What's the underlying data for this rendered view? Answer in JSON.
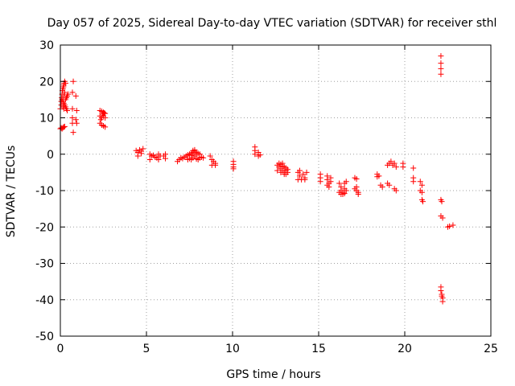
{
  "chart_data": {
    "type": "scatter",
    "title": "Day 057 of 2025, Sidereal Day-to-day VTEC variation (SDTVAR) for receiver sthl",
    "xlabel": "GPS time / hours",
    "ylabel": "SDTVAR / TECUs",
    "xlim": [
      0,
      25
    ],
    "ylim": [
      -50,
      30
    ],
    "xticks": [
      0,
      5,
      10,
      15,
      20,
      25
    ],
    "yticks": [
      -50,
      -40,
      -30,
      -20,
      -10,
      0,
      10,
      20,
      30
    ],
    "grid": true,
    "marker": "plus",
    "color": "#ff0000",
    "series": [
      {
        "name": "SDTVAR",
        "points": [
          [
            0.0,
            7.0
          ],
          [
            0.05,
            7.2
          ],
          [
            0.1,
            7.0
          ],
          [
            0.15,
            7.3
          ],
          [
            0.2,
            7.5
          ],
          [
            0.25,
            7.6
          ],
          [
            0.0,
            12.5
          ],
          [
            0.05,
            13.5
          ],
          [
            0.05,
            14.5
          ],
          [
            0.08,
            15.5
          ],
          [
            0.1,
            16.5
          ],
          [
            0.12,
            17.5
          ],
          [
            0.15,
            18.0
          ],
          [
            0.18,
            18.5
          ],
          [
            0.2,
            19.0
          ],
          [
            0.22,
            19.5
          ],
          [
            0.25,
            20.0
          ],
          [
            0.3,
            19.5
          ],
          [
            0.1,
            15.0
          ],
          [
            0.15,
            14.5
          ],
          [
            0.2,
            14.0
          ],
          [
            0.25,
            13.5
          ],
          [
            0.3,
            13.0
          ],
          [
            0.35,
            12.5
          ],
          [
            0.4,
            12.0
          ],
          [
            0.3,
            15.0
          ],
          [
            0.35,
            15.5
          ],
          [
            0.4,
            16.0
          ],
          [
            0.45,
            16.5
          ],
          [
            0.2,
            16.0
          ],
          [
            0.25,
            17.0
          ],
          [
            0.15,
            13.0
          ],
          [
            0.2,
            12.5
          ],
          [
            0.75,
            20.0
          ],
          [
            0.7,
            17.0
          ],
          [
            0.9,
            16.0
          ],
          [
            0.7,
            12.5
          ],
          [
            0.95,
            12.0
          ],
          [
            0.7,
            10.0
          ],
          [
            0.9,
            9.5
          ],
          [
            0.7,
            8.5
          ],
          [
            0.95,
            8.5
          ],
          [
            0.75,
            6.0
          ],
          [
            2.3,
            12.0
          ],
          [
            2.4,
            11.8
          ],
          [
            2.5,
            11.5
          ],
          [
            2.6,
            11.2
          ],
          [
            2.3,
            10.5
          ],
          [
            2.4,
            10.0
          ],
          [
            2.5,
            10.5
          ],
          [
            2.6,
            10.0
          ],
          [
            2.35,
            9.5
          ],
          [
            2.3,
            8.5
          ],
          [
            2.4,
            8.0
          ],
          [
            2.5,
            7.8
          ],
          [
            2.6,
            7.5
          ],
          [
            2.45,
            11.0
          ],
          [
            2.55,
            11.3
          ],
          [
            4.4,
            1.0
          ],
          [
            4.5,
            0.5
          ],
          [
            4.6,
            1.2
          ],
          [
            4.7,
            0.2
          ],
          [
            4.5,
            -0.5
          ],
          [
            4.8,
            1.5
          ],
          [
            4.7,
            0.8
          ],
          [
            5.2,
            0.0
          ],
          [
            5.3,
            -0.5
          ],
          [
            5.2,
            -1.5
          ],
          [
            5.4,
            -0.3
          ],
          [
            5.5,
            -0.8
          ],
          [
            5.6,
            -1.0
          ],
          [
            5.7,
            0.0
          ],
          [
            5.8,
            -0.5
          ],
          [
            5.7,
            -1.5
          ],
          [
            6.0,
            -0.5
          ],
          [
            6.1,
            0.0
          ],
          [
            6.1,
            -1.2
          ],
          [
            6.8,
            -2.0
          ],
          [
            6.9,
            -1.5
          ],
          [
            7.0,
            -1.0
          ],
          [
            7.1,
            -1.2
          ],
          [
            7.2,
            -0.8
          ],
          [
            7.3,
            -0.5
          ],
          [
            7.4,
            -0.2
          ],
          [
            7.5,
            0.0
          ],
          [
            7.6,
            0.2
          ],
          [
            7.7,
            0.5
          ],
          [
            7.8,
            0.8
          ],
          [
            7.9,
            0.5
          ],
          [
            8.0,
            0.2
          ],
          [
            8.1,
            0.0
          ],
          [
            7.5,
            -1.2
          ],
          [
            7.6,
            -1.5
          ],
          [
            7.7,
            -1.0
          ],
          [
            7.8,
            -0.5
          ],
          [
            7.9,
            -1.3
          ],
          [
            8.0,
            -1.5
          ],
          [
            8.1,
            -1.0
          ],
          [
            8.2,
            -0.8
          ],
          [
            7.7,
            1.0
          ],
          [
            7.8,
            1.2
          ],
          [
            7.9,
            0.0
          ],
          [
            7.6,
            -0.3
          ],
          [
            8.3,
            -1.0
          ],
          [
            7.4,
            -1.5
          ],
          [
            8.7,
            -0.5
          ],
          [
            8.8,
            -1.5
          ],
          [
            8.9,
            -2.0
          ],
          [
            9.0,
            -2.5
          ],
          [
            8.8,
            -3.0
          ],
          [
            9.0,
            -3.0
          ],
          [
            10.05,
            -2.0
          ],
          [
            10.05,
            -2.8
          ],
          [
            10.05,
            -3.5
          ],
          [
            10.05,
            -4.0
          ],
          [
            11.3,
            2.0
          ],
          [
            11.3,
            1.0
          ],
          [
            11.3,
            0.0
          ],
          [
            11.5,
            0.5
          ],
          [
            11.5,
            -0.5
          ],
          [
            11.6,
            -0.2
          ],
          [
            12.6,
            -3.0
          ],
          [
            12.7,
            -3.5
          ],
          [
            12.8,
            -4.0
          ],
          [
            12.9,
            -4.5
          ],
          [
            13.0,
            -5.0
          ],
          [
            13.1,
            -4.5
          ],
          [
            12.7,
            -2.5
          ],
          [
            12.8,
            -2.8
          ],
          [
            12.9,
            -3.2
          ],
          [
            13.0,
            -3.5
          ],
          [
            13.1,
            -3.8
          ],
          [
            13.2,
            -4.2
          ],
          [
            12.6,
            -4.5
          ],
          [
            12.8,
            -5.0
          ],
          [
            13.0,
            -5.5
          ],
          [
            12.9,
            -2.5
          ],
          [
            13.2,
            -5.0
          ],
          [
            13.1,
            -5.5
          ],
          [
            13.8,
            -5.0
          ],
          [
            13.9,
            -6.0
          ],
          [
            14.0,
            -7.0
          ],
          [
            14.1,
            -5.5
          ],
          [
            14.2,
            -6.5
          ],
          [
            13.9,
            -4.5
          ],
          [
            14.3,
            -5.0
          ],
          [
            14.2,
            -7.0
          ],
          [
            13.8,
            -7.0
          ],
          [
            15.1,
            -5.5
          ],
          [
            15.1,
            -6.5
          ],
          [
            15.1,
            -7.5
          ],
          [
            15.5,
            -6.0
          ],
          [
            15.5,
            -7.0
          ],
          [
            15.6,
            -8.0
          ],
          [
            15.5,
            -8.5
          ],
          [
            15.7,
            -6.5
          ],
          [
            15.7,
            -7.5
          ],
          [
            15.6,
            -9.0
          ],
          [
            16.2,
            -8.0
          ],
          [
            16.3,
            -9.0
          ],
          [
            16.3,
            -10.0
          ],
          [
            16.4,
            -10.5
          ],
          [
            16.4,
            -11.0
          ],
          [
            16.5,
            -9.5
          ],
          [
            16.5,
            -8.0
          ],
          [
            16.6,
            -7.5
          ],
          [
            16.2,
            -10.5
          ],
          [
            16.3,
            -11.0
          ],
          [
            16.5,
            -10.8
          ],
          [
            16.6,
            -10.0
          ],
          [
            17.1,
            -6.5
          ],
          [
            17.2,
            -9.0
          ],
          [
            17.2,
            -10.0
          ],
          [
            17.3,
            -10.5
          ],
          [
            17.3,
            -11.0
          ],
          [
            17.1,
            -9.5
          ],
          [
            17.2,
            -6.8
          ],
          [
            18.4,
            -5.5
          ],
          [
            18.5,
            -6.0
          ],
          [
            18.6,
            -8.5
          ],
          [
            18.7,
            -9.0
          ],
          [
            18.4,
            -6.2
          ],
          [
            19.0,
            -3.0
          ],
          [
            19.1,
            -2.5
          ],
          [
            19.2,
            -2.0
          ],
          [
            19.0,
            -8.0
          ],
          [
            19.1,
            -8.5
          ],
          [
            19.4,
            -2.5
          ],
          [
            19.5,
            -3.5
          ],
          [
            19.4,
            -9.5
          ],
          [
            19.5,
            -10.0
          ],
          [
            19.3,
            -3.0
          ],
          [
            19.9,
            -2.5
          ],
          [
            19.9,
            -3.5
          ],
          [
            20.5,
            -3.8
          ],
          [
            20.5,
            -6.5
          ],
          [
            20.5,
            -7.5
          ],
          [
            20.9,
            -7.5
          ],
          [
            21.0,
            -8.5
          ],
          [
            20.9,
            -10.0
          ],
          [
            21.0,
            -10.5
          ],
          [
            21.0,
            -12.5
          ],
          [
            21.05,
            -13.0
          ],
          [
            22.1,
            -12.5
          ],
          [
            22.15,
            -13.0
          ],
          [
            22.1,
            -17.0
          ],
          [
            22.2,
            -17.5
          ],
          [
            22.1,
            27.0
          ],
          [
            22.1,
            25.0
          ],
          [
            22.1,
            23.5
          ],
          [
            22.1,
            22.0
          ],
          [
            22.1,
            -36.5
          ],
          [
            22.1,
            -37.5
          ],
          [
            22.15,
            -38.5
          ],
          [
            22.15,
            -39.0
          ],
          [
            22.2,
            -39.5
          ],
          [
            22.2,
            -40.5
          ],
          [
            22.5,
            -20.0
          ],
          [
            22.6,
            -19.8
          ],
          [
            22.8,
            -19.5
          ]
        ]
      }
    ]
  }
}
